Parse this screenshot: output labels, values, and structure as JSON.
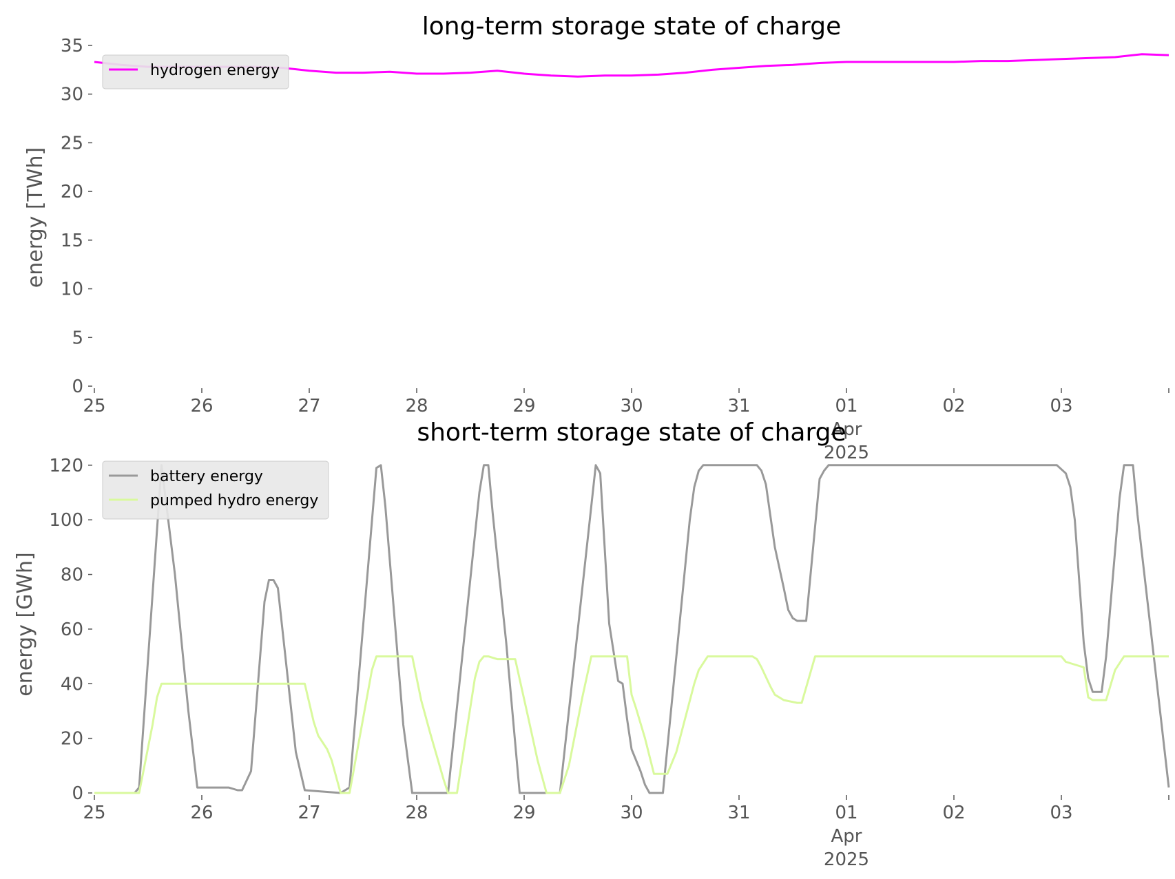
{
  "chart_data": [
    {
      "type": "line",
      "title": "long-term storage state of charge",
      "xlabel": "",
      "ylabel": "energy [TWh]",
      "ylim": [
        0,
        35
      ],
      "yticks": [
        "0",
        "5",
        "10",
        "15",
        "20",
        "25",
        "30",
        "35"
      ],
      "xlim": [
        "2025-03-25",
        "2025-04-04"
      ],
      "xticks": [
        {
          "date": "2025-03-25",
          "label": "25"
        },
        {
          "date": "2025-03-26",
          "label": "26"
        },
        {
          "date": "2025-03-27",
          "label": "27"
        },
        {
          "date": "2025-03-28",
          "label": "28"
        },
        {
          "date": "2025-03-29",
          "label": "29"
        },
        {
          "date": "2025-03-30",
          "label": "30"
        },
        {
          "date": "2025-03-31",
          "label": "31"
        },
        {
          "date": "2025-04-01",
          "label": "01",
          "sub": [
            "Apr",
            "2025"
          ]
        },
        {
          "date": "2025-04-02",
          "label": "02"
        },
        {
          "date": "2025-04-03",
          "label": "03"
        }
      ],
      "legend_position": "upper-left",
      "grid": false,
      "series": [
        {
          "name": "hydrogen energy",
          "color": "#ff00ff",
          "points": [
            [
              "2025-03-25 00:00",
              33.3
            ],
            [
              "2025-03-25 06:00",
              33.0
            ],
            [
              "2025-03-25 12:00",
              32.8
            ],
            [
              "2025-03-25 18:00",
              32.8
            ],
            [
              "2025-03-26 00:00",
              32.8
            ],
            [
              "2025-03-26 06:00",
              32.8
            ],
            [
              "2025-03-26 12:00",
              32.8
            ],
            [
              "2025-03-26 18:00",
              32.7
            ],
            [
              "2025-03-27 00:00",
              32.4
            ],
            [
              "2025-03-27 06:00",
              32.2
            ],
            [
              "2025-03-27 12:00",
              32.2
            ],
            [
              "2025-03-27 18:00",
              32.3
            ],
            [
              "2025-03-28 00:00",
              32.1
            ],
            [
              "2025-03-28 06:00",
              32.1
            ],
            [
              "2025-03-28 12:00",
              32.2
            ],
            [
              "2025-03-28 18:00",
              32.4
            ],
            [
              "2025-03-29 00:00",
              32.1
            ],
            [
              "2025-03-29 06:00",
              31.9
            ],
            [
              "2025-03-29 12:00",
              31.8
            ],
            [
              "2025-03-29 18:00",
              31.9
            ],
            [
              "2025-03-30 00:00",
              31.9
            ],
            [
              "2025-03-30 06:00",
              32.0
            ],
            [
              "2025-03-30 12:00",
              32.2
            ],
            [
              "2025-03-30 18:00",
              32.5
            ],
            [
              "2025-03-31 00:00",
              32.7
            ],
            [
              "2025-03-31 06:00",
              32.9
            ],
            [
              "2025-03-31 12:00",
              33.0
            ],
            [
              "2025-03-31 18:00",
              33.2
            ],
            [
              "2025-04-01 00:00",
              33.3
            ],
            [
              "2025-04-01 06:00",
              33.3
            ],
            [
              "2025-04-01 12:00",
              33.3
            ],
            [
              "2025-04-01 18:00",
              33.3
            ],
            [
              "2025-04-02 00:00",
              33.3
            ],
            [
              "2025-04-02 06:00",
              33.4
            ],
            [
              "2025-04-02 12:00",
              33.4
            ],
            [
              "2025-04-02 18:00",
              33.5
            ],
            [
              "2025-04-03 00:00",
              33.6
            ],
            [
              "2025-04-03 06:00",
              33.7
            ],
            [
              "2025-04-03 12:00",
              33.8
            ],
            [
              "2025-04-03 18:00",
              34.1
            ],
            [
              "2025-04-04 00:00",
              34.0
            ]
          ]
        }
      ]
    },
    {
      "type": "line",
      "title": "short-term storage state of charge",
      "xlabel": "",
      "ylabel": "energy [GWh]",
      "ylim": [
        0,
        125
      ],
      "yticks": [
        "0",
        "20",
        "40",
        "60",
        "80",
        "100",
        "120"
      ],
      "xlim": [
        "2025-03-25",
        "2025-04-04"
      ],
      "xticks": [
        {
          "date": "2025-03-25",
          "label": "25"
        },
        {
          "date": "2025-03-26",
          "label": "26"
        },
        {
          "date": "2025-03-27",
          "label": "27"
        },
        {
          "date": "2025-03-28",
          "label": "28"
        },
        {
          "date": "2025-03-29",
          "label": "29"
        },
        {
          "date": "2025-03-30",
          "label": "30"
        },
        {
          "date": "2025-03-31",
          "label": "31"
        },
        {
          "date": "2025-04-01",
          "label": "01",
          "sub": [
            "Apr",
            "2025"
          ]
        },
        {
          "date": "2025-04-02",
          "label": "02"
        },
        {
          "date": "2025-04-03",
          "label": "03"
        }
      ],
      "legend_position": "upper-left",
      "grid": false,
      "series": [
        {
          "name": "battery energy",
          "color": "#999999",
          "points": [
            [
              "2025-03-25 00:00",
              0
            ],
            [
              "2025-03-25 09:00",
              0
            ],
            [
              "2025-03-25 10:00",
              2
            ],
            [
              "2025-03-25 15:00",
              120
            ],
            [
              "2025-03-25 18:00",
              80
            ],
            [
              "2025-03-25 21:00",
              30
            ],
            [
              "2025-03-25 23:00",
              2
            ],
            [
              "2025-03-26 06:00",
              2
            ],
            [
              "2025-03-26 08:00",
              1
            ],
            [
              "2025-03-26 09:00",
              1
            ],
            [
              "2025-03-26 11:00",
              8
            ],
            [
              "2025-03-26 14:00",
              70
            ],
            [
              "2025-03-26 15:00",
              78
            ],
            [
              "2025-03-26 16:00",
              78
            ],
            [
              "2025-03-26 17:00",
              75
            ],
            [
              "2025-03-26 19:00",
              45
            ],
            [
              "2025-03-26 21:00",
              15
            ],
            [
              "2025-03-26 23:00",
              1
            ],
            [
              "2025-03-27 07:00",
              0
            ],
            [
              "2025-03-27 09:00",
              2
            ],
            [
              "2025-03-27 15:00",
              119
            ],
            [
              "2025-03-27 16:00",
              120
            ],
            [
              "2025-03-27 17:00",
              105
            ],
            [
              "2025-03-27 21:00",
              25
            ],
            [
              "2025-03-27 23:00",
              0
            ],
            [
              "2025-03-28 07:00",
              0
            ],
            [
              "2025-03-28 14:00",
              110
            ],
            [
              "2025-03-28 15:00",
              120
            ],
            [
              "2025-03-28 16:00",
              120
            ],
            [
              "2025-03-28 17:00",
              102
            ],
            [
              "2025-03-28 20:00",
              55
            ],
            [
              "2025-03-28 23:00",
              0
            ],
            [
              "2025-03-29 08:00",
              0
            ],
            [
              "2025-03-29 15:00",
              105
            ],
            [
              "2025-03-29 16:00",
              120
            ],
            [
              "2025-03-29 17:00",
              117
            ],
            [
              "2025-03-29 19:00",
              62
            ],
            [
              "2025-03-29 21:00",
              41
            ],
            [
              "2025-03-29 22:00",
              40
            ],
            [
              "2025-03-29 23:00",
              27
            ],
            [
              "2025-03-30 00:00",
              16
            ],
            [
              "2025-03-30 02:00",
              8
            ],
            [
              "2025-03-30 03:00",
              3
            ],
            [
              "2025-03-30 04:00",
              0
            ],
            [
              "2025-03-30 07:00",
              0
            ],
            [
              "2025-03-30 13:00",
              100
            ],
            [
              "2025-03-30 14:00",
              112
            ],
            [
              "2025-03-30 15:00",
              118
            ],
            [
              "2025-03-30 16:00",
              120
            ],
            [
              "2025-03-31 04:00",
              120
            ],
            [
              "2025-03-31 05:00",
              118
            ],
            [
              "2025-03-31 06:00",
              113
            ],
            [
              "2025-03-31 08:00",
              90
            ],
            [
              "2025-03-31 10:00",
              75
            ],
            [
              "2025-03-31 11:00",
              67
            ],
            [
              "2025-03-31 12:00",
              64
            ],
            [
              "2025-03-31 13:00",
              63
            ],
            [
              "2025-03-31 14:00",
              63
            ],
            [
              "2025-03-31 15:00",
              63
            ],
            [
              "2025-03-31 18:00",
              115
            ],
            [
              "2025-03-31 19:00",
              118
            ],
            [
              "2025-03-31 20:00",
              120
            ],
            [
              "2025-04-02 23:00",
              120
            ],
            [
              "2025-04-03 01:00",
              117
            ],
            [
              "2025-04-03 02:00",
              112
            ],
            [
              "2025-04-03 03:00",
              100
            ],
            [
              "2025-04-03 05:00",
              55
            ],
            [
              "2025-04-03 06:00",
              42
            ],
            [
              "2025-04-03 07:00",
              37
            ],
            [
              "2025-04-03 09:00",
              37
            ],
            [
              "2025-04-03 10:00",
              50
            ],
            [
              "2025-04-03 13:00",
              108
            ],
            [
              "2025-04-03 14:00",
              120
            ],
            [
              "2025-04-03 16:00",
              120
            ],
            [
              "2025-04-03 17:00",
              102
            ],
            [
              "2025-04-03 21:00",
              45
            ],
            [
              "2025-04-04 00:00",
              2
            ]
          ]
        },
        {
          "name": "pumped hydro energy",
          "color": "#d9f99d",
          "points": [
            [
              "2025-03-25 00:00",
              0
            ],
            [
              "2025-03-25 10:00",
              0
            ],
            [
              "2025-03-25 13:00",
              25
            ],
            [
              "2025-03-25 14:00",
              35
            ],
            [
              "2025-03-25 15:00",
              40
            ],
            [
              "2025-03-26 23:00",
              40
            ],
            [
              "2025-03-27 01:00",
              26
            ],
            [
              "2025-03-27 02:00",
              21
            ],
            [
              "2025-03-27 04:00",
              16
            ],
            [
              "2025-03-27 05:00",
              12
            ],
            [
              "2025-03-27 07:00",
              0
            ],
            [
              "2025-03-27 09:00",
              0
            ],
            [
              "2025-03-27 14:00",
              45
            ],
            [
              "2025-03-27 15:00",
              50
            ],
            [
              "2025-03-27 23:00",
              50
            ],
            [
              "2025-03-28 01:00",
              34
            ],
            [
              "2025-03-28 03:00",
              22
            ],
            [
              "2025-03-28 06:00",
              5
            ],
            [
              "2025-03-28 07:00",
              0
            ],
            [
              "2025-03-28 09:00",
              0
            ],
            [
              "2025-03-28 13:00",
              42
            ],
            [
              "2025-03-28 14:00",
              48
            ],
            [
              "2025-03-28 15:00",
              50
            ],
            [
              "2025-03-28 16:00",
              50
            ],
            [
              "2025-03-28 18:00",
              49
            ],
            [
              "2025-03-28 22:00",
              49
            ],
            [
              "2025-03-29 01:00",
              27
            ],
            [
              "2025-03-29 03:00",
              12
            ],
            [
              "2025-03-29 05:00",
              0
            ],
            [
              "2025-03-29 08:00",
              0
            ],
            [
              "2025-03-29 10:00",
              10
            ],
            [
              "2025-03-29 13:00",
              35
            ],
            [
              "2025-03-29 15:00",
              50
            ],
            [
              "2025-03-29 23:00",
              50
            ],
            [
              "2025-03-30 00:00",
              36
            ],
            [
              "2025-03-30 01:00",
              31
            ],
            [
              "2025-03-30 03:00",
              20
            ],
            [
              "2025-03-30 05:00",
              7
            ],
            [
              "2025-03-30 08:00",
              7
            ],
            [
              "2025-03-30 10:00",
              15
            ],
            [
              "2025-03-30 14:00",
              40
            ],
            [
              "2025-03-30 15:00",
              45
            ],
            [
              "2025-03-30 17:00",
              50
            ],
            [
              "2025-03-31 03:00",
              50
            ],
            [
              "2025-03-31 04:00",
              49
            ],
            [
              "2025-03-31 05:00",
              46
            ],
            [
              "2025-03-31 07:00",
              39
            ],
            [
              "2025-03-31 08:00",
              36
            ],
            [
              "2025-03-31 10:00",
              34
            ],
            [
              "2025-03-31 13:00",
              33
            ],
            [
              "2025-03-31 14:00",
              33
            ],
            [
              "2025-03-31 17:00",
              50
            ],
            [
              "2025-04-03 00:00",
              50
            ],
            [
              "2025-04-03 01:00",
              48
            ],
            [
              "2025-04-03 03:00",
              47
            ],
            [
              "2025-04-03 05:00",
              46
            ],
            [
              "2025-04-03 06:00",
              35
            ],
            [
              "2025-04-03 07:00",
              34
            ],
            [
              "2025-04-03 10:00",
              34
            ],
            [
              "2025-04-03 12:00",
              45
            ],
            [
              "2025-04-03 14:00",
              50
            ],
            [
              "2025-04-04 00:00",
              50
            ]
          ]
        }
      ]
    }
  ]
}
